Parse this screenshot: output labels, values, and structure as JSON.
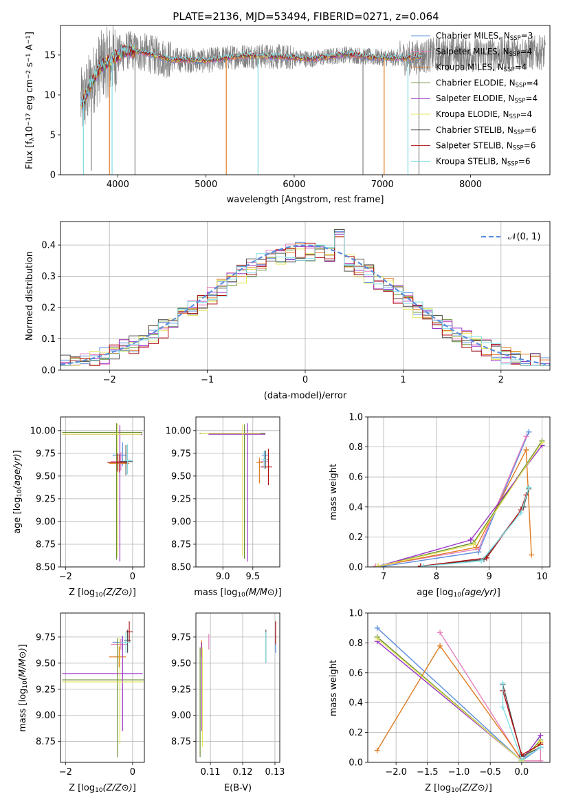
{
  "title": "PLATE=2136, MJD=53494, FIBERID=0271, z=0.064",
  "colors": {
    "Chabrier MILES": "#5b8dde",
    "Salpeter MILES": "#e67fbf",
    "Kroupa MILES": "#e07b20",
    "Chabrier ELODIE": "#6a8f32",
    "Salpeter ELODIE": "#9a32c8",
    "Kroupa ELODIE": "#e4e55a",
    "Chabrier STELIB": "#505050",
    "Salpeter STELIB": "#b01010",
    "Kroupa STELIB": "#7fdde4",
    "data": "#808080",
    "normal": "#5b8dde"
  },
  "chart_data": [
    {
      "type": "line",
      "xlabel": "wavelength [Angstrom, rest frame]",
      "ylabel": "Flux [f_λ10^-17 erg cm^-2 s^-1 A^-1]",
      "xlim": [
        3350,
        8900
      ],
      "ylim": [
        0,
        18.7
      ],
      "xticks": [
        4000,
        5000,
        6000,
        7000,
        8000
      ],
      "yticks": [
        0,
        5,
        10,
        15
      ],
      "legend_position": "right",
      "legend": [
        {
          "model": "Chabrier MILES",
          "n_ssp": "3"
        },
        {
          "model": "Salpeter MILES",
          "n_ssp": "4"
        },
        {
          "model": "Kroupa MILES",
          "n_ssp": "4"
        },
        {
          "model": "Chabrier ELODIE",
          "n_ssp": "4"
        },
        {
          "model": "Salpeter ELODIE",
          "n_ssp": "4"
        },
        {
          "model": "Kroupa ELODIE",
          "n_ssp": "4"
        },
        {
          "model": "Chabrier STELIB",
          "n_ssp": "6"
        },
        {
          "model": "Salpeter STELIB",
          "n_ssp": "6"
        },
        {
          "model": "Kroupa STELIB",
          "n_ssp": "6"
        }
      ],
      "continuum": [
        [
          3600,
          9.0
        ],
        [
          3700,
          11.5
        ],
        [
          3800,
          13.5
        ],
        [
          3950,
          14.6
        ],
        [
          4100,
          15.6
        ],
        [
          4300,
          15.3
        ],
        [
          4600,
          14.4
        ],
        [
          5000,
          14.3
        ],
        [
          5400,
          14.9
        ],
        [
          5800,
          14.8
        ],
        [
          6200,
          14.5
        ],
        [
          6600,
          15.1
        ],
        [
          6900,
          14.7
        ],
        [
          7300,
          14.6
        ],
        [
          7700,
          15.2
        ],
        [
          8100,
          15.0
        ],
        [
          8500,
          15.2
        ],
        [
          8800,
          15.3
        ]
      ],
      "data_range": [
        3580,
        8850
      ],
      "model_range": [
        3580,
        7450
      ],
      "spikes": [
        [
          3610,
          0
        ],
        [
          3700,
          0.5
        ],
        [
          3905,
          0
        ],
        [
          3935,
          0
        ],
        [
          4195,
          0
        ],
        [
          5230,
          0
        ],
        [
          5590,
          0
        ],
        [
          6780,
          0
        ],
        [
          7020,
          0
        ],
        [
          7290,
          0
        ],
        [
          7415,
          0
        ]
      ]
    },
    {
      "type": "histogram",
      "xlabel": "(data-model)/error",
      "ylabel": "Normed distribution",
      "xlim": [
        -2.5,
        2.5
      ],
      "ylim": [
        0,
        0.475
      ],
      "xticks": [
        -2,
        -1,
        0,
        1,
        2
      ],
      "yticks": [
        0.0,
        0.1,
        0.2,
        0.3,
        0.4
      ],
      "grid": true,
      "legend_position": "top-right",
      "legend": "𝒩(0, 1)",
      "bin_width": 0.1,
      "bin_start": -2.5,
      "normal_curve": {
        "mean": 0,
        "sigma": 1
      }
    },
    {
      "type": "errorbar",
      "xlabel": "Z [log10(Z/Z⊙)]",
      "ylabel": "age  [log10(age/yr)]",
      "xlim": [
        -2.15,
        0.35
      ],
      "ylim": [
        8.5,
        10.15
      ],
      "xticks": [
        -2,
        0
      ],
      "yticks": [
        8.5,
        8.75,
        9.0,
        9.25,
        9.5,
        9.75,
        10.0
      ],
      "grid": true,
      "points": [
        {
          "model": "Chabrier MILES",
          "x": -0.3,
          "xerr": [
            0.3,
            0.1
          ],
          "y": 9.73,
          "yerr": [
            0.12,
            0.14
          ]
        },
        {
          "model": "Salpeter MILES",
          "x": -0.35,
          "xerr": [
            0.3,
            0.2
          ],
          "y": 9.66,
          "yerr": [
            0.1,
            0.1
          ]
        },
        {
          "model": "Kroupa MILES",
          "x": -0.4,
          "xerr": [
            0.3,
            0.3
          ],
          "y": 9.64,
          "yerr": [
            0.1,
            0.1
          ]
        },
        {
          "model": "Chabrier ELODIE",
          "x": -0.48,
          "xerr": [
            1.62,
            0.77
          ],
          "y": 9.98,
          "yerr": [
            1.4,
            0.1
          ]
        },
        {
          "model": "Salpeter ELODIE",
          "x": -0.38,
          "xerr": [
            1.72,
            0.67
          ],
          "y": 9.96,
          "yerr": [
            1.4,
            0.1
          ]
        },
        {
          "model": "Kroupa ELODIE",
          "x": -0.45,
          "xerr": [
            1.65,
            0.7
          ],
          "y": 9.96,
          "yerr": [
            1.35,
            0.12
          ]
        },
        {
          "model": "Chabrier STELIB",
          "x": -0.2,
          "xerr": [
            0.2,
            0.2
          ],
          "y": 9.66,
          "yerr": [
            0.15,
            0.18
          ]
        },
        {
          "model": "Salpeter STELIB",
          "x": -0.45,
          "xerr": [
            0.3,
            0.3
          ],
          "y": 9.65,
          "yerr": [
            0.1,
            0.1
          ]
        },
        {
          "model": "Kroupa STELIB",
          "x": -0.15,
          "xerr": [
            0.1,
            0.15
          ],
          "y": 9.67,
          "yerr": [
            0.15,
            0.18
          ]
        }
      ]
    },
    {
      "type": "errorbar",
      "xlabel": "mass [log10(M/M⊙)]",
      "xlim": [
        8.55,
        9.95
      ],
      "ylim": [
        8.5,
        10.15
      ],
      "xticks": [
        9.0,
        9.5
      ],
      "yticks": [
        8.5,
        8.75,
        9.0,
        9.25,
        9.5,
        9.75,
        10.0
      ],
      "grid": true,
      "points": [
        {
          "model": "Chabrier MILES",
          "x": 9.7,
          "xerr": [
            0.05,
            0.05
          ],
          "y": 9.73,
          "yerr": [
            0.05,
            0.05
          ]
        },
        {
          "model": "Salpeter MILES",
          "x": 9.69,
          "xerr": [
            0.06,
            0.06
          ],
          "y": 9.66,
          "yerr": [
            0.05,
            0.05
          ]
        },
        {
          "model": "Kroupa MILES",
          "x": 9.61,
          "xerr": [
            0.05,
            0.05
          ],
          "y": 9.65,
          "yerr": [
            0.23,
            0.05
          ]
        },
        {
          "model": "Chabrier ELODIE",
          "x": 9.36,
          "xerr": [
            0.75,
            0.35
          ],
          "y": 9.97,
          "yerr": [
            1.38,
            0.1
          ]
        },
        {
          "model": "Salpeter ELODIE",
          "x": 9.41,
          "xerr": [
            0.65,
            0.3
          ],
          "y": 9.96,
          "yerr": [
            1.4,
            0.12
          ]
        },
        {
          "model": "Kroupa ELODIE",
          "x": 9.33,
          "xerr": [
            0.7,
            0.3
          ],
          "y": 9.97,
          "yerr": [
            1.35,
            0.1
          ]
        },
        {
          "model": "Chabrier STELIB",
          "x": 9.71,
          "xerr": [
            0.05,
            0.05
          ],
          "y": 9.68,
          "yerr": [
            0.1,
            0.1
          ]
        },
        {
          "model": "Salpeter STELIB",
          "x": 9.76,
          "xerr": [
            0.13,
            0.06
          ],
          "y": 9.6,
          "yerr": [
            0.2,
            0.2
          ]
        },
        {
          "model": "Kroupa STELIB",
          "x": 9.69,
          "xerr": [
            0.05,
            0.05
          ],
          "y": 9.68,
          "yerr": [
            0.1,
            0.1
          ]
        }
      ]
    },
    {
      "type": "line",
      "xlabel": "age  [log10(age/yr)]",
      "ylabel": "mass weight",
      "xlim": [
        6.7,
        10.15
      ],
      "ylim": [
        0,
        1.0
      ],
      "xticks": [
        7,
        8,
        9,
        10
      ],
      "yticks": [
        0.0,
        0.2,
        0.4,
        0.6,
        0.8,
        1.0
      ],
      "grid": true,
      "series": [
        {
          "model": "Chabrier MILES",
          "x": [
            7.0,
            8.8,
            9.75
          ],
          "y": [
            0.005,
            0.1,
            0.9
          ]
        },
        {
          "model": "Salpeter MILES",
          "x": [
            6.85,
            8.8,
            9.7
          ],
          "y": [
            0.005,
            0.12,
            0.87
          ]
        },
        {
          "model": "Kroupa MILES",
          "x": [
            6.9,
            8.75,
            9.7,
            9.8
          ],
          "y": [
            0.005,
            0.13,
            0.78,
            0.08
          ]
        },
        {
          "model": "Chabrier ELODIE",
          "x": [
            6.9,
            8.7,
            10.0
          ],
          "y": [
            0.005,
            0.16,
            0.84
          ]
        },
        {
          "model": "Salpeter ELODIE",
          "x": [
            6.9,
            8.65,
            10.0
          ],
          "y": [
            0.005,
            0.18,
            0.81
          ]
        },
        {
          "model": "Kroupa ELODIE",
          "x": [
            6.9,
            8.7,
            10.0
          ],
          "y": [
            0.005,
            0.15,
            0.83
          ]
        },
        {
          "model": "Chabrier STELIB",
          "x": [
            7.7,
            8.9,
            9.65,
            9.75
          ],
          "y": [
            0.005,
            0.05,
            0.4,
            0.52
          ]
        },
        {
          "model": "Salpeter STELIB",
          "x": [
            7.7,
            8.95,
            9.6,
            9.7
          ],
          "y": [
            0.005,
            0.06,
            0.38,
            0.48
          ]
        },
        {
          "model": "Kroupa STELIB",
          "x": [
            7.75,
            8.85,
            9.6,
            9.75
          ],
          "y": [
            0.005,
            0.04,
            0.36,
            0.53
          ]
        }
      ]
    },
    {
      "type": "errorbar",
      "xlabel": "Z [log10(Z/Z⊙)]",
      "ylabel": "mass [log10(M/M⊙)]",
      "xlim": [
        -2.15,
        0.35
      ],
      "ylim": [
        8.55,
        9.98
      ],
      "xticks": [
        -2,
        0
      ],
      "yticks": [
        8.75,
        9.0,
        9.25,
        9.5,
        9.75
      ],
      "grid": true,
      "points": [
        {
          "model": "Chabrier MILES",
          "x": -0.3,
          "xerr": [
            0.3,
            0.1
          ],
          "y": 9.7,
          "yerr": [
            0.08,
            0.06
          ]
        },
        {
          "model": "Salpeter MILES",
          "x": -0.35,
          "xerr": [
            0.3,
            0.2
          ],
          "y": 9.68,
          "yerr": [
            0.05,
            0.05
          ]
        },
        {
          "model": "Kroupa MILES",
          "x": -0.4,
          "xerr": [
            0.3,
            0.2
          ],
          "y": 9.56,
          "yerr": [
            0.1,
            0.1
          ]
        },
        {
          "model": "Chabrier ELODIE",
          "x": -0.45,
          "xerr": [
            1.65,
            0.8
          ],
          "y": 9.34,
          "yerr": [
            0.74,
            0.4
          ]
        },
        {
          "model": "Salpeter ELODIE",
          "x": -0.3,
          "xerr": [
            1.8,
            0.6
          ],
          "y": 9.4,
          "yerr": [
            0.55,
            0.36
          ]
        },
        {
          "model": "Kroupa ELODIE",
          "x": -0.38,
          "xerr": [
            1.72,
            0.7
          ],
          "y": 9.32,
          "yerr": [
            0.6,
            0.43
          ]
        },
        {
          "model": "Chabrier STELIB",
          "x": -0.15,
          "xerr": [
            0.1,
            0.1
          ],
          "y": 9.72,
          "yerr": [
            0.12,
            0.1
          ]
        },
        {
          "model": "Salpeter STELIB",
          "x": -0.1,
          "xerr": [
            0.1,
            0.1
          ],
          "y": 9.8,
          "yerr": [
            0.1,
            0.1
          ]
        },
        {
          "model": "Kroupa STELIB",
          "x": -0.2,
          "xerr": [
            0.15,
            0.15
          ],
          "y": 9.7,
          "yerr": [
            0.1,
            0.1
          ]
        }
      ]
    },
    {
      "type": "errorbar",
      "xlabel": "E(B-V)",
      "xlim": [
        0.1055,
        0.1315
      ],
      "ylim": [
        8.55,
        9.98
      ],
      "xticks": [
        0.11,
        0.12,
        0.13
      ],
      "yticks": [
        8.75,
        9.0,
        9.25,
        9.5,
        9.75
      ],
      "grid": true,
      "points": [
        {
          "model": "Chabrier MILES",
          "x": 0.1302,
          "y": 9.7,
          "yerr": [
            0.1,
            0.1
          ]
        },
        {
          "model": "Salpeter MILES",
          "x": 0.1095,
          "y": 9.68,
          "yerr": [
            0.05,
            0.1
          ]
        },
        {
          "model": "Kroupa MILES",
          "x": 0.1072,
          "y": 9.62,
          "yerr": [
            0.06,
            0.1
          ]
        },
        {
          "model": "Chabrier ELODIE",
          "x": 0.1068,
          "y": 9.3,
          "yerr": [
            0.7,
            0.35
          ]
        },
        {
          "model": "Salpeter ELODIE",
          "x": 0.1073,
          "y": 9.4,
          "yerr": [
            0.55,
            0.3
          ]
        },
        {
          "model": "Kroupa ELODIE",
          "x": 0.1075,
          "y": 9.3,
          "yerr": [
            0.6,
            0.35
          ]
        },
        {
          "model": "Chabrier STELIB",
          "x": 0.1272,
          "y": 9.7,
          "yerr": [
            0.2,
            0.12
          ]
        },
        {
          "model": "Salpeter STELIB",
          "x": 0.1302,
          "y": 9.78,
          "yerr": [
            0.1,
            0.12
          ]
        },
        {
          "model": "Kroupa STELIB",
          "x": 0.1272,
          "y": 9.65,
          "yerr": [
            0.15,
            0.15
          ]
        }
      ]
    },
    {
      "type": "line",
      "xlabel": "Z [log10(Z/Z⊙)]",
      "ylabel": "mass weight",
      "xlim": [
        -2.45,
        0.45
      ],
      "ylim": [
        0,
        1.0
      ],
      "xticks": [
        -2.0,
        -1.5,
        -1.0,
        -0.5,
        0.0
      ],
      "yticks": [
        0.0,
        0.2,
        0.4,
        0.6,
        0.8,
        1.0
      ],
      "grid": true,
      "series": [
        {
          "model": "Chabrier MILES",
          "x": [
            -2.3,
            0.0,
            0.3
          ],
          "y": [
            0.9,
            0.01,
            0.1
          ]
        },
        {
          "model": "Salpeter MILES",
          "x": [
            -1.3,
            0.0,
            0.3,
            0.3
          ],
          "y": [
            0.87,
            0.01,
            0.01,
            0.12
          ]
        },
        {
          "model": "Kroupa MILES",
          "x": [
            -2.3,
            -1.3,
            0.0,
            0.3
          ],
          "y": [
            0.08,
            0.78,
            0.02,
            0.13
          ]
        },
        {
          "model": "Chabrier ELODIE",
          "x": [
            -2.3,
            0.0,
            0.3
          ],
          "y": [
            0.84,
            0.01,
            0.15
          ]
        },
        {
          "model": "Salpeter ELODIE",
          "x": [
            -2.3,
            0.0,
            0.3
          ],
          "y": [
            0.81,
            0.01,
            0.18
          ]
        },
        {
          "model": "Kroupa ELODIE",
          "x": [
            -2.3,
            0.0,
            0.3
          ],
          "y": [
            0.83,
            0.01,
            0.14
          ]
        },
        {
          "model": "Chabrier STELIB",
          "x": [
            -0.3,
            0.0,
            0.3
          ],
          "y": [
            0.52,
            0.04,
            0.1
          ]
        },
        {
          "model": "Salpeter STELIB",
          "x": [
            -0.3,
            0.0,
            0.3
          ],
          "y": [
            0.48,
            0.05,
            0.12
          ]
        },
        {
          "model": "Kroupa STELIB",
          "x": [
            -0.3,
            -0.3,
            0.0,
            0.3
          ],
          "y": [
            0.53,
            0.37,
            0.02,
            0.1
          ]
        }
      ]
    }
  ]
}
